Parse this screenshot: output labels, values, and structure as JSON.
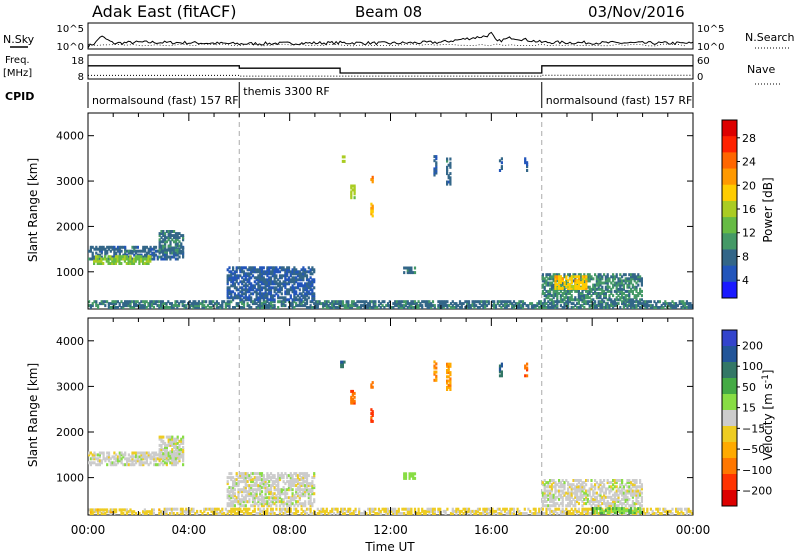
{
  "header": {
    "radar": "Adak East (fitACF)",
    "beam": "Beam 08",
    "date": "03/Nov/2016"
  },
  "summary": {
    "nsky_label": "N.Sky",
    "nsearch_label": "N.Search",
    "freq_label": "Freq.",
    "freq_unit": "[MHz]",
    "nave_label": "Nave",
    "cpid_label": "CPID",
    "nsky_ticks": [
      "10^5",
      "10^0"
    ],
    "nsearch_ticks": [
      "10^5",
      "10^0"
    ],
    "freq_ticks": [
      "18",
      "8"
    ],
    "nave_ticks": [
      "60",
      "0"
    ]
  },
  "cpid_segments": [
    {
      "label": "normalsound (fast) 157 RF",
      "start_hour": 0
    },
    {
      "label": "themis 3300 RF",
      "start_hour": 6.0
    },
    {
      "label": "normalsound (fast) 157 RF",
      "start_hour": 18.0
    }
  ],
  "colors": {
    "power_scale": [
      "#1a1aff",
      "#2255bb",
      "#336688",
      "#449966",
      "#66bb44",
      "#aacc22",
      "#ffcc00",
      "#ff9900",
      "#ff6600",
      "#ff2200",
      "#dd0000"
    ],
    "velocity_scale": [
      "#3344cc",
      "#225599",
      "#337766",
      "#44aa44",
      "#88dd44",
      "#cccccc",
      "#eecc22",
      "#ffaa00",
      "#ff7700",
      "#ff3300",
      "#dd0000"
    ]
  },
  "chart_data": [
    {
      "type": "line",
      "title": "N.Sky / N.Search",
      "x_range": [
        0,
        24
      ],
      "series": [
        {
          "x": [
            0,
            0.3,
            0.5,
            1,
            2,
            4,
            6,
            8,
            10,
            12,
            14,
            15.8,
            16.0,
            16.2,
            16.8,
            18,
            20,
            24
          ],
          "y": [
            0.5,
            1.2,
            2.5,
            1.1,
            1.3,
            1.2,
            1.0,
            1.1,
            1.2,
            1.1,
            1.3,
            2.5,
            3.0,
            1.4,
            2.2,
            1.3,
            1.2,
            1.1
          ]
        }
      ]
    },
    {
      "type": "line",
      "title": "Freq / Nave",
      "x_range": [
        0,
        24
      ],
      "series": [
        {
          "x": [
            0,
            6.0,
            6.0,
            10.0,
            10.0,
            18.0,
            18.0,
            24
          ],
          "y": [
            13.5,
            13.5,
            12.5,
            12.5,
            10.5,
            10.5,
            13.5,
            13.5
          ]
        },
        {
          "x": [
            0,
            6.0,
            6.0,
            18.0,
            18.0,
            24
          ],
          "y": [
            9.5,
            9.5,
            9.2,
            9.2,
            9.6,
            9.6
          ]
        }
      ]
    },
    {
      "type": "heatmap",
      "title": "Power",
      "xlabel": "",
      "ylabel": "Slant Range [km]",
      "x_range": [
        0,
        24
      ],
      "ylim": [
        180,
        4500
      ],
      "yticks": [
        "1000",
        "2000",
        "3000",
        "4000"
      ],
      "colorbar_label": "Power [dB]",
      "colorbar_ticks": [
        "28",
        "24",
        "20",
        "16",
        "12",
        "8",
        "4"
      ],
      "regions": [
        {
          "t0": 0.0,
          "t1": 3.8,
          "r0": 1250,
          "r1": 1550,
          "v": 7
        },
        {
          "t0": 0.2,
          "t1": 2.5,
          "r0": 1150,
          "r1": 1350,
          "v": 14
        },
        {
          "t0": 2.8,
          "t1": 3.8,
          "r0": 1400,
          "r1": 1900,
          "v": 8
        },
        {
          "t0": 0.0,
          "t1": 24,
          "r0": 180,
          "r1": 350,
          "v": 8
        },
        {
          "t0": 5.5,
          "t1": 9.0,
          "r0": 350,
          "r1": 1100,
          "v": 6
        },
        {
          "t0": 18.0,
          "t1": 22.0,
          "r0": 350,
          "r1": 950,
          "v": 9
        },
        {
          "t0": 18.5,
          "t1": 19.8,
          "r0": 600,
          "r1": 900,
          "v": 19
        },
        {
          "t0": 10.0,
          "t1": 10.2,
          "r0": 3400,
          "r1": 3550,
          "v": 15
        },
        {
          "t0": 11.2,
          "t1": 11.3,
          "r0": 2200,
          "r1": 2500,
          "v": 20
        },
        {
          "t0": 10.4,
          "t1": 10.6,
          "r0": 2600,
          "r1": 2900,
          "v": 16
        },
        {
          "t0": 11.2,
          "t1": 11.3,
          "r0": 2950,
          "r1": 3100,
          "v": 22
        },
        {
          "t0": 13.7,
          "t1": 13.85,
          "r0": 3100,
          "r1": 3550,
          "v": 6
        },
        {
          "t0": 14.2,
          "t1": 14.4,
          "r0": 2900,
          "r1": 3500,
          "v": 7
        },
        {
          "t0": 16.3,
          "t1": 16.45,
          "r0": 3200,
          "r1": 3500,
          "v": 6
        },
        {
          "t0": 17.3,
          "t1": 17.45,
          "r0": 3200,
          "r1": 3500,
          "v": 6
        },
        {
          "t0": 12.5,
          "t1": 13.0,
          "r0": 950,
          "r1": 1100,
          "v": 8
        }
      ]
    },
    {
      "type": "heatmap",
      "title": "Velocity",
      "xlabel": "Time UT",
      "ylabel": "Slant Range [km]",
      "x_range": [
        0,
        24
      ],
      "ylim": [
        180,
        4500
      ],
      "xticks": [
        "00:00",
        "04:00",
        "08:00",
        "12:00",
        "16:00",
        "20:00",
        "00:00"
      ],
      "yticks": [
        "1000",
        "2000",
        "3000",
        "4000"
      ],
      "colorbar_label": "Velocity [m s",
      "colorbar_label_sup": "-1",
      "colorbar_label_end": "]",
      "colorbar_ticks": [
        "200",
        "100",
        "50",
        "15",
        "−15",
        "−50",
        "−100",
        "−200"
      ],
      "regions": [
        {
          "t0": 0.0,
          "t1": 3.8,
          "r0": 1250,
          "r1": 1550,
          "v": 0
        },
        {
          "t0": 2.8,
          "t1": 3.8,
          "r0": 1400,
          "r1": 1900,
          "v": 0
        },
        {
          "t0": 0.0,
          "t1": 3.0,
          "r0": 180,
          "r1": 300,
          "v": -40
        },
        {
          "t0": 3.0,
          "t1": 24,
          "r0": 180,
          "r1": 320,
          "v": -30
        },
        {
          "t0": 5.5,
          "t1": 9.0,
          "r0": 350,
          "r1": 1100,
          "v": 0
        },
        {
          "t0": 18.0,
          "t1": 22.0,
          "r0": 350,
          "r1": 950,
          "v": 0
        },
        {
          "t0": 20.0,
          "t1": 22.0,
          "r0": 200,
          "r1": 330,
          "v": 60
        },
        {
          "t0": 10.0,
          "t1": 10.2,
          "r0": 3400,
          "r1": 3550,
          "v": 150
        },
        {
          "t0": 10.4,
          "t1": 10.6,
          "r0": 2600,
          "r1": 2900,
          "v": -150
        },
        {
          "t0": 11.2,
          "t1": 11.3,
          "r0": 2200,
          "r1": 2500,
          "v": -180
        },
        {
          "t0": 11.2,
          "t1": 11.3,
          "r0": 2950,
          "r1": 3100,
          "v": -150
        },
        {
          "t0": 13.7,
          "t1": 13.85,
          "r0": 3100,
          "r1": 3550,
          "v": -120
        },
        {
          "t0": 14.2,
          "t1": 14.4,
          "r0": 2900,
          "r1": 3500,
          "v": -100
        },
        {
          "t0": 16.3,
          "t1": 16.45,
          "r0": 3200,
          "r1": 3500,
          "v": 150
        },
        {
          "t0": 17.3,
          "t1": 17.45,
          "r0": 3200,
          "r1": 3500,
          "v": -150
        },
        {
          "t0": 12.5,
          "t1": 13.0,
          "r0": 950,
          "r1": 1100,
          "v": 60
        }
      ]
    }
  ]
}
